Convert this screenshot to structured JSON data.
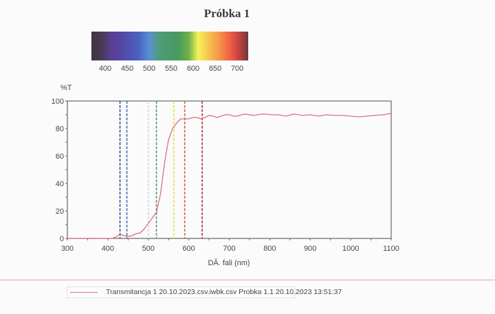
{
  "title": "Próbka 1",
  "spectrum_bar": {
    "labels": [
      "400",
      "450",
      "500",
      "550",
      "600",
      "650",
      "700"
    ]
  },
  "chart_data": {
    "type": "line",
    "title": "",
    "xlabel": "DĂ. fali (nm)",
    "ylabel": "%T",
    "xlim": [
      300,
      1100
    ],
    "ylim": [
      0,
      100
    ],
    "xticks": [
      300,
      400,
      500,
      600,
      700,
      800,
      900,
      1000,
      1100
    ],
    "yticks": [
      0,
      20,
      40,
      60,
      80,
      100
    ],
    "grid": false,
    "series": [
      {
        "name": "Transmitancja 1 20.10.2023.csv.iwbk.csv   Probka 1.1 20.10.2023 13:51:37",
        "color": "#d9707c",
        "x": [
          300,
          350,
          400,
          410,
          420,
          430,
          440,
          450,
          460,
          470,
          480,
          490,
          500,
          510,
          520,
          530,
          540,
          550,
          560,
          570,
          580,
          590,
          600,
          610,
          620,
          630,
          640,
          650,
          660,
          670,
          680,
          690,
          700,
          710,
          720,
          730,
          740,
          750,
          760,
          770,
          780,
          790,
          800,
          820,
          840,
          860,
          880,
          900,
          920,
          940,
          960,
          980,
          1000,
          1020,
          1040,
          1060,
          1080,
          1100
        ],
        "y": [
          0,
          0,
          0,
          0,
          1,
          3,
          2,
          1.5,
          2,
          3.5,
          4,
          7,
          11,
          15,
          19,
          32,
          55,
          72,
          80,
          84,
          87,
          87,
          87,
          88,
          88,
          87,
          88,
          89.5,
          89,
          88,
          89,
          90,
          90,
          89,
          89,
          90,
          90.5,
          90,
          89.5,
          90,
          90.5,
          90.5,
          90,
          90,
          89,
          90.5,
          89.5,
          90,
          89,
          90,
          89.5,
          89.5,
          89,
          88.5,
          89,
          89.5,
          90,
          91
        ]
      }
    ],
    "reference_lines": [
      {
        "x": 430,
        "color": "#3e4a8c"
      },
      {
        "x": 447,
        "color": "#4a6fc0"
      },
      {
        "x": 500,
        "color": "#c8dcea"
      },
      {
        "x": 520,
        "color": "#4f9c78"
      },
      {
        "x": 563,
        "color": "#e6e04a"
      },
      {
        "x": 590,
        "color": "#e0604a"
      },
      {
        "x": 633,
        "color": "#a8343c"
      }
    ]
  },
  "legend": {
    "text": "Transmitancja 1 20.10.2023.csv.iwbk.csv   Probka 1.1 20.10.2023 13:51:37"
  }
}
